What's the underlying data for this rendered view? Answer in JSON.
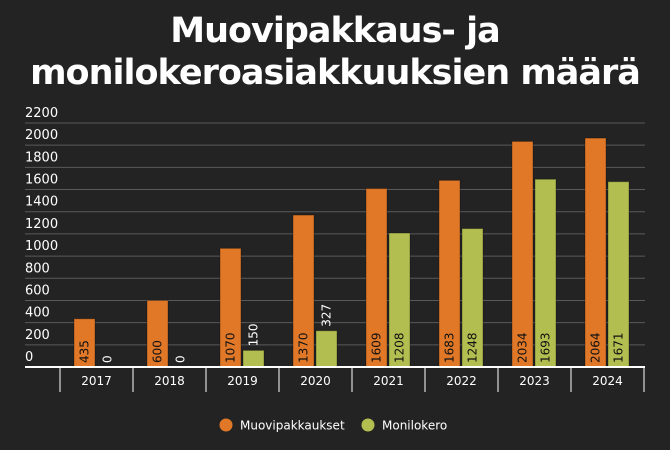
{
  "chart_data": {
    "type": "bar",
    "title": [
      "Muovipakkaus- ja",
      "monilokeroasiakkuuksien määrä"
    ],
    "categories": [
      "2017",
      "2018",
      "2019",
      "2020",
      "2021",
      "2022",
      "2023",
      "2024"
    ],
    "series": [
      {
        "name": "Muovipakkaukset",
        "color": "#E07828",
        "values": [
          435,
          600,
          1070,
          1370,
          1609,
          1683,
          2034,
          2064
        ]
      },
      {
        "name": "Monilokero",
        "color": "#B3BE50",
        "values": [
          0,
          0,
          150,
          327,
          1208,
          1248,
          1693,
          1671
        ]
      }
    ],
    "ylim": [
      0,
      2200
    ],
    "yticks": [
      0,
      200,
      400,
      600,
      800,
      1000,
      1200,
      1400,
      1600,
      1800,
      2000,
      2200
    ],
    "grid": true,
    "legend": "bottom",
    "background": "#232323"
  }
}
